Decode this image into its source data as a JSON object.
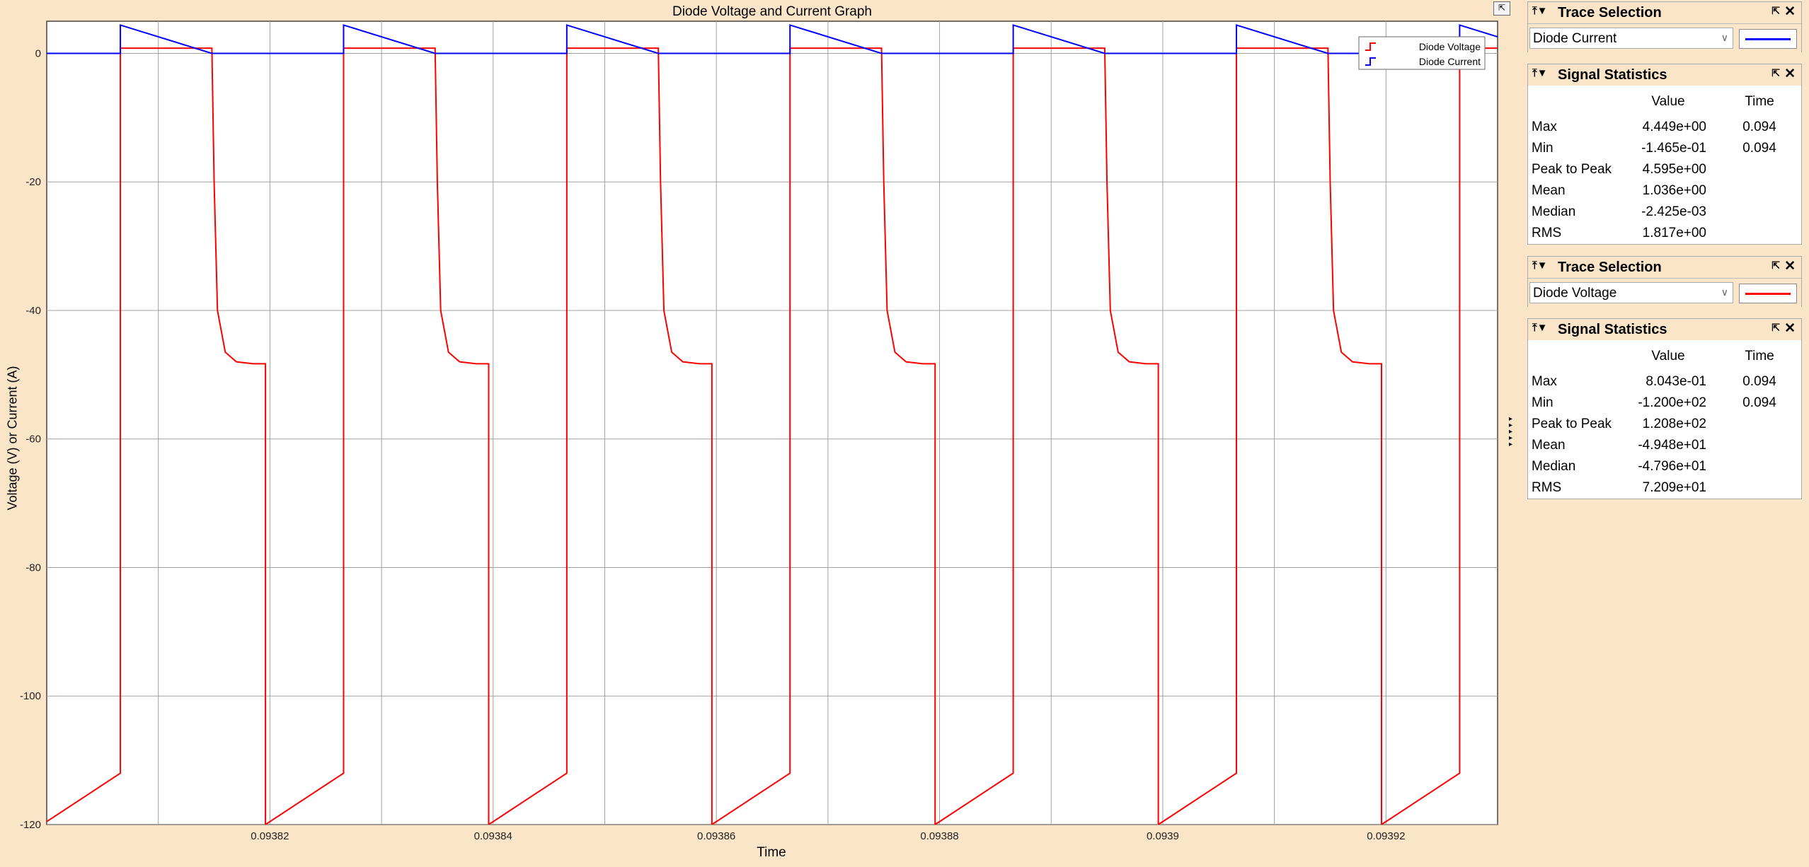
{
  "window": {
    "title": "Diode Voltage and Current Graph",
    "xlabel": "Time",
    "ylabel": "Voltage (V) or Current (A)"
  },
  "legend": {
    "items": [
      {
        "name": "Diode Voltage",
        "color": "#ff0000"
      },
      {
        "name": "Diode Current",
        "color": "#0000ff"
      }
    ],
    "position": "top-right"
  },
  "chart_data": {
    "type": "line",
    "title": "Diode Voltage and Current Graph",
    "xlabel": "Time",
    "ylabel": "Voltage (V) or Current (A)",
    "xlim": [
      0.0938,
      0.09393
    ],
    "ylim": [
      -120,
      5
    ],
    "grid": true,
    "xticks": [
      "0.09382",
      "0.09384",
      "0.09386",
      "0.09388",
      "0.0939",
      "0.09392"
    ],
    "yticks": [
      "0",
      "-20",
      "-40",
      "-60",
      "-80",
      "-100",
      "-120"
    ],
    "period": 2e-05,
    "series": [
      {
        "name": "Diode Voltage",
        "color": "#ff0000",
        "points_one_period": [
          [
            0.0938066,
            -112.0
          ],
          [
            0.0938066,
            0.8
          ],
          [
            0.0938148,
            0.8
          ],
          [
            0.093815,
            -20.0
          ],
          [
            0.0938153,
            -40.0
          ],
          [
            0.093816,
            -46.5
          ],
          [
            0.093817,
            -48.0
          ],
          [
            0.0938185,
            -48.3
          ],
          [
            0.0938196,
            -48.3
          ],
          [
            0.0938196,
            -120.0
          ],
          [
            0.0938266,
            -112.0
          ]
        ]
      },
      {
        "name": "Diode Current",
        "color": "#0000ff",
        "points_one_period": [
          [
            0.0938066,
            0.0
          ],
          [
            0.0938066,
            4.4
          ],
          [
            0.0938148,
            0.0
          ],
          [
            0.0938266,
            0.0
          ]
        ]
      }
    ]
  },
  "panels": [
    {
      "trace_title": "Trace Selection",
      "selected_trace": "Diode Current",
      "trace_color": "#0000ff",
      "stats_title": "Signal Statistics",
      "col_value": "Value",
      "col_time": "Time",
      "rows": [
        {
          "label": "Max",
          "value": "4.449e+00",
          "time": "0.094"
        },
        {
          "label": "Min",
          "value": "-1.465e-01",
          "time": "0.094"
        },
        {
          "label": "Peak to Peak",
          "value": "4.595e+00",
          "time": ""
        },
        {
          "label": "Mean",
          "value": "1.036e+00",
          "time": ""
        },
        {
          "label": "Median",
          "value": "-2.425e-03",
          "time": ""
        },
        {
          "label": "RMS",
          "value": "1.817e+00",
          "time": ""
        }
      ]
    },
    {
      "trace_title": "Trace Selection",
      "selected_trace": "Diode Voltage",
      "trace_color": "#ff0000",
      "stats_title": "Signal Statistics",
      "col_value": "Value",
      "col_time": "Time",
      "rows": [
        {
          "label": "Max",
          "value": "8.043e-01",
          "time": "0.094"
        },
        {
          "label": "Min",
          "value": "-1.200e+02",
          "time": "0.094"
        },
        {
          "label": "Peak to Peak",
          "value": "1.208e+02",
          "time": ""
        },
        {
          "label": "Mean",
          "value": "-4.948e+01",
          "time": ""
        },
        {
          "label": "Median",
          "value": "-4.796e+01",
          "time": ""
        },
        {
          "label": "RMS",
          "value": "7.209e+01",
          "time": ""
        }
      ]
    }
  ]
}
